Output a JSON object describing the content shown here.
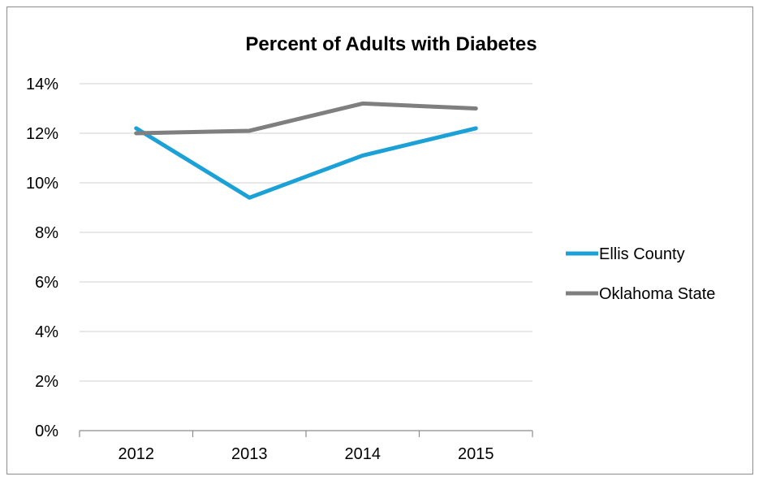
{
  "chart_data": {
    "type": "line",
    "title": "Percent of Adults with Diabetes",
    "xlabel": "",
    "ylabel": "",
    "categories": [
      "2012",
      "2013",
      "2014",
      "2015"
    ],
    "y_ticks": [
      "0%",
      "2%",
      "4%",
      "6%",
      "8%",
      "10%",
      "12%",
      "14%"
    ],
    "ylim": [
      0,
      14
    ],
    "grid": true,
    "legend_position": "right",
    "series": [
      {
        "name": "Ellis County",
        "color": "#1BA1D6",
        "values": [
          12.2,
          9.4,
          11.1,
          12.2
        ]
      },
      {
        "name": "Oklahoma State",
        "color": "#7F7F7F",
        "values": [
          12.0,
          12.1,
          13.2,
          13.0
        ]
      }
    ]
  }
}
